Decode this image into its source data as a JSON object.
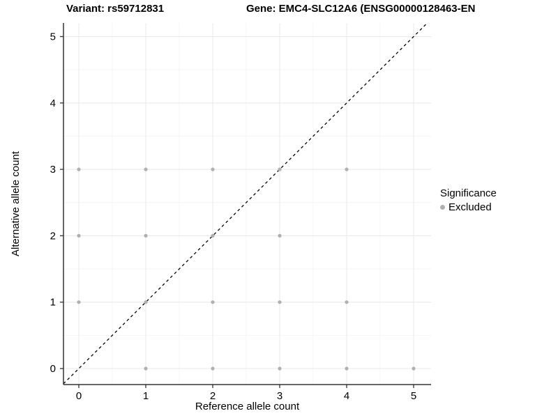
{
  "header": {
    "variant_title": "Variant: rs59712831",
    "gene_title": "Gene: EMC4-SLC12A6 (ENSG00000128463-EN"
  },
  "legend": {
    "title": "Significance",
    "items": [
      {
        "label": "Excluded",
        "color": "#b0b0b0"
      }
    ]
  },
  "chart_data": {
    "type": "scatter",
    "xlabel": "Reference allele count",
    "ylabel": "Alternative allele count",
    "xticks": [
      0,
      1,
      2,
      3,
      4,
      5
    ],
    "yticks": [
      0,
      1,
      2,
      3,
      4,
      5
    ],
    "xlim": [
      -0.23,
      5.26
    ],
    "ylim": [
      -0.24,
      5.45
    ],
    "grid": {
      "major": true,
      "minor": true,
      "minor_step": 0.5
    },
    "reference_line": {
      "equation": "y = x",
      "style": "dashed",
      "color": "#000000"
    },
    "legend_position": "right",
    "series": [
      {
        "name": "Excluded",
        "color": "#b0b0b0",
        "points": [
          [
            1,
            0
          ],
          [
            2,
            0
          ],
          [
            3,
            0
          ],
          [
            4,
            0
          ],
          [
            5,
            0
          ],
          [
            0,
            1
          ],
          [
            1,
            1
          ],
          [
            2,
            1
          ],
          [
            3,
            1
          ],
          [
            4,
            1
          ],
          [
            0,
            2
          ],
          [
            1,
            2
          ],
          [
            2,
            2
          ],
          [
            3,
            2
          ],
          [
            0,
            3
          ],
          [
            1,
            3
          ],
          [
            2,
            3
          ],
          [
            3,
            3
          ],
          [
            4,
            3
          ]
        ]
      }
    ],
    "colors": {
      "background": "#ffffff",
      "grid_major": "#e8e8e8",
      "grid_minor": "#f4f4f4",
      "axis": "#333333",
      "text": "#000000",
      "point": "#b0b0b0"
    }
  }
}
